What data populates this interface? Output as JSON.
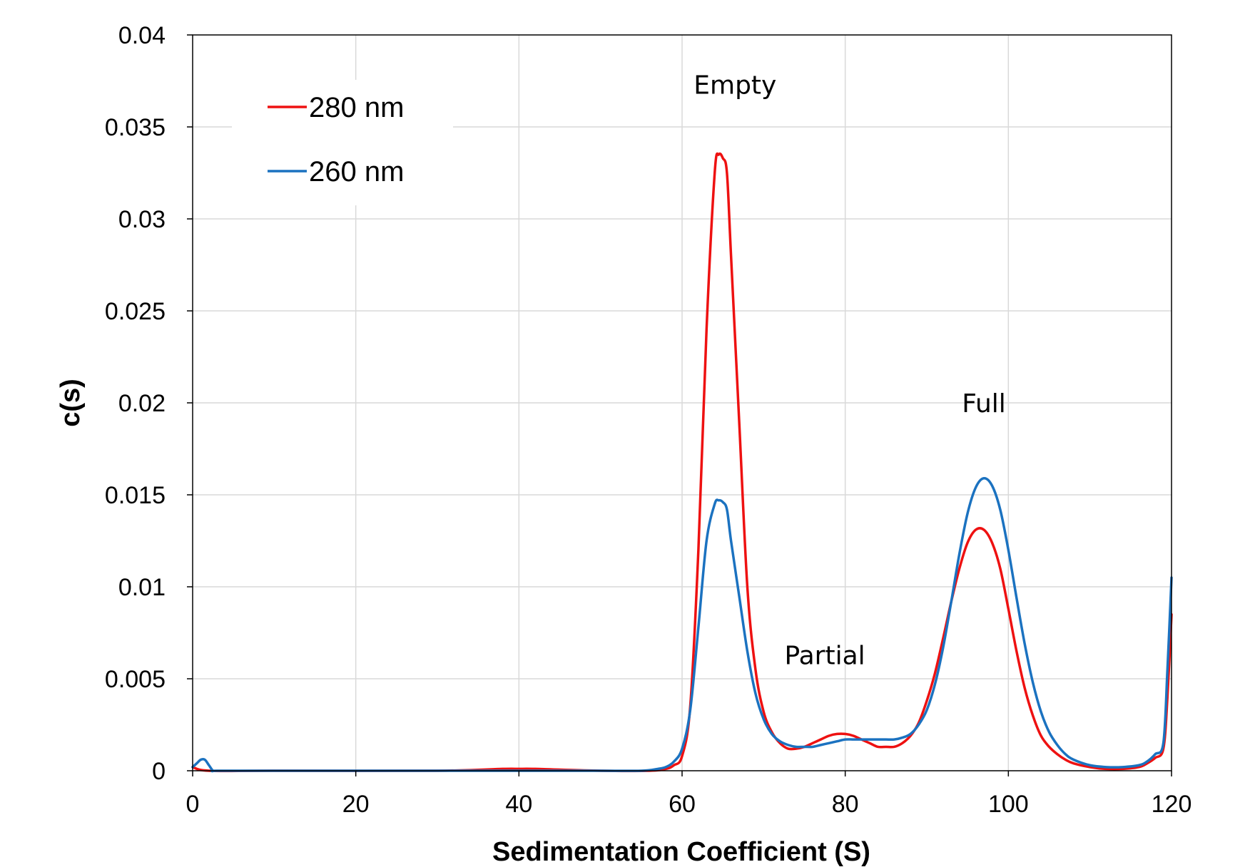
{
  "chart_data": {
    "type": "line",
    "xlabel": "Sedimentation Coefficient (S)",
    "ylabel": "c(s)",
    "xlim": [
      0,
      120
    ],
    "ylim": [
      0,
      0.04
    ],
    "xticks": [
      0,
      20,
      40,
      60,
      80,
      100,
      120
    ],
    "yticks": [
      0,
      0.005,
      0.01,
      0.015,
      0.02,
      0.025,
      0.03,
      0.035,
      0.04
    ],
    "xtick_labels": [
      "0",
      "20",
      "40",
      "60",
      "80",
      "100",
      "120"
    ],
    "ytick_labels": [
      "0",
      "0.005",
      "0.01",
      "0.015",
      "0.02",
      "0.025",
      "0.03",
      "0.035",
      "0.04"
    ],
    "grid": true,
    "legend_position": "top-left",
    "annotations": [
      {
        "text": "Empty",
        "x": 66.5,
        "y": 0.0368
      },
      {
        "text": "Partial",
        "x": 77.5,
        "y": 0.0058
      },
      {
        "text": "Full",
        "x": 97,
        "y": 0.0195
      }
    ],
    "series": [
      {
        "name": "280 nm",
        "color": "#ee1111",
        "points": [
          [
            0,
            0.0002
          ],
          [
            2,
            0.0
          ],
          [
            10,
            0.0
          ],
          [
            30,
            0.0
          ],
          [
            38,
            0.0001
          ],
          [
            40,
            0.0001
          ],
          [
            42,
            0.0001
          ],
          [
            50,
            0.0
          ],
          [
            56,
            0.0
          ],
          [
            58,
            0.0001
          ],
          [
            59,
            0.0003
          ],
          [
            60,
            0.0008
          ],
          [
            61,
            0.0035
          ],
          [
            62,
            0.012
          ],
          [
            63,
            0.024
          ],
          [
            64,
            0.0325
          ],
          [
            64.5,
            0.0335
          ],
          [
            65,
            0.0333
          ],
          [
            65.5,
            0.0325
          ],
          [
            66,
            0.028
          ],
          [
            67,
            0.019
          ],
          [
            68,
            0.01
          ],
          [
            69,
            0.0055
          ],
          [
            70,
            0.0032
          ],
          [
            71,
            0.0021
          ],
          [
            72,
            0.0015
          ],
          [
            73,
            0.0012
          ],
          [
            74,
            0.0012
          ],
          [
            75,
            0.0013
          ],
          [
            76,
            0.0015
          ],
          [
            77,
            0.0017
          ],
          [
            78,
            0.0019
          ],
          [
            79,
            0.002
          ],
          [
            80,
            0.002
          ],
          [
            81,
            0.0019
          ],
          [
            82,
            0.0017
          ],
          [
            83,
            0.0015
          ],
          [
            84,
            0.0013
          ],
          [
            85,
            0.0013
          ],
          [
            86,
            0.0013
          ],
          [
            87,
            0.0015
          ],
          [
            88,
            0.0019
          ],
          [
            89,
            0.0026
          ],
          [
            90,
            0.0038
          ],
          [
            91,
            0.0053
          ],
          [
            92,
            0.0072
          ],
          [
            93,
            0.0092
          ],
          [
            94,
            0.011
          ],
          [
            95,
            0.0124
          ],
          [
            96,
            0.0131
          ],
          [
            97,
            0.0131
          ],
          [
            98,
            0.0124
          ],
          [
            99,
            0.011
          ],
          [
            100,
            0.0088
          ],
          [
            101,
            0.0065
          ],
          [
            102,
            0.0045
          ],
          [
            103,
            0.003
          ],
          [
            104,
            0.0019
          ],
          [
            105,
            0.0013
          ],
          [
            106,
            0.0009
          ],
          [
            107,
            0.0006
          ],
          [
            108,
            0.0004
          ],
          [
            110,
            0.0002
          ],
          [
            112,
            0.0001
          ],
          [
            114,
            0.0001
          ],
          [
            116,
            0.0002
          ],
          [
            117,
            0.0004
          ],
          [
            118,
            0.0007
          ],
          [
            119,
            0.0012
          ],
          [
            119.5,
            0.004
          ],
          [
            120,
            0.0085
          ]
        ]
      },
      {
        "name": "260 nm",
        "color": "#1b72c0",
        "points": [
          [
            0,
            0.0002
          ],
          [
            0.5,
            0.0004
          ],
          [
            1,
            0.0006
          ],
          [
            1.5,
            0.0006
          ],
          [
            2,
            0.0003
          ],
          [
            2.5,
            0.0
          ],
          [
            3,
            0.0
          ],
          [
            10,
            0.0
          ],
          [
            30,
            0.0
          ],
          [
            40,
            0.0
          ],
          [
            50,
            0.0
          ],
          [
            55,
            0.0
          ],
          [
            57,
            0.0001
          ],
          [
            58,
            0.0002
          ],
          [
            59,
            0.0005
          ],
          [
            60,
            0.0012
          ],
          [
            61,
            0.0033
          ],
          [
            62,
            0.0078
          ],
          [
            63,
            0.0125
          ],
          [
            64,
            0.0145
          ],
          [
            64.5,
            0.0147
          ],
          [
            65,
            0.0146
          ],
          [
            65.5,
            0.0142
          ],
          [
            66,
            0.0125
          ],
          [
            67,
            0.0095
          ],
          [
            68,
            0.0065
          ],
          [
            69,
            0.0042
          ],
          [
            70,
            0.0028
          ],
          [
            71,
            0.002
          ],
          [
            72,
            0.0016
          ],
          [
            73,
            0.0014
          ],
          [
            74,
            0.0013
          ],
          [
            75,
            0.0013
          ],
          [
            76,
            0.0013
          ],
          [
            77,
            0.0014
          ],
          [
            78,
            0.0015
          ],
          [
            79,
            0.0016
          ],
          [
            80,
            0.0017
          ],
          [
            81,
            0.0017
          ],
          [
            82,
            0.0017
          ],
          [
            83,
            0.0017
          ],
          [
            84,
            0.0017
          ],
          [
            85,
            0.0017
          ],
          [
            86,
            0.0017
          ],
          [
            87,
            0.0018
          ],
          [
            88,
            0.002
          ],
          [
            89,
            0.0025
          ],
          [
            90,
            0.0033
          ],
          [
            91,
            0.0047
          ],
          [
            92,
            0.0067
          ],
          [
            93,
            0.0092
          ],
          [
            94,
            0.0118
          ],
          [
            95,
            0.014
          ],
          [
            96,
            0.0154
          ],
          [
            97,
            0.0159
          ],
          [
            98,
            0.0155
          ],
          [
            99,
            0.0142
          ],
          [
            100,
            0.012
          ],
          [
            101,
            0.0094
          ],
          [
            102,
            0.0069
          ],
          [
            103,
            0.0048
          ],
          [
            104,
            0.0032
          ],
          [
            105,
            0.0021
          ],
          [
            106,
            0.0014
          ],
          [
            107,
            0.0009
          ],
          [
            108,
            0.0006
          ],
          [
            110,
            0.0003
          ],
          [
            112,
            0.0002
          ],
          [
            114,
            0.0002
          ],
          [
            116,
            0.0003
          ],
          [
            117,
            0.0005
          ],
          [
            118,
            0.0009
          ],
          [
            119,
            0.0015
          ],
          [
            119.5,
            0.0055
          ],
          [
            120,
            0.0105
          ]
        ]
      }
    ]
  }
}
